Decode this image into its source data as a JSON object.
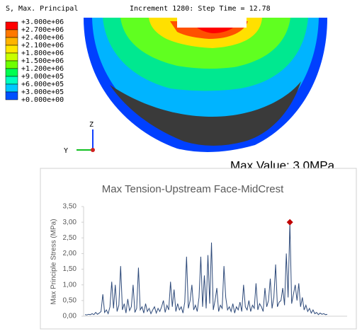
{
  "legend": {
    "title": "S, Max. Principal",
    "labels": [
      "+3.000e+06",
      "+2.700e+06",
      "+2.400e+06",
      "+2.100e+06",
      "+1.800e+06",
      "+1.500e+06",
      "+1.200e+06",
      "+9.000e+05",
      "+6.000e+05",
      "+3.000e+05",
      "+0.000e+00"
    ],
    "colors": [
      "#ff0000",
      "#ff7800",
      "#ffb400",
      "#ffe600",
      "#c8ff00",
      "#6eff00",
      "#00ff50",
      "#00ffc0",
      "#00c8ff",
      "#0050ff"
    ]
  },
  "increment": "Increment    1280: Step Time =    12.78",
  "triad": {
    "z": "Z",
    "y": "Y"
  },
  "max_value": "Max Value: 3.0MPa",
  "chart_data": {
    "type": "line",
    "title": "Max Tension-Upstream Face-MidCrest",
    "y_label": "Max Principle Stress (MPa)",
    "ylim": [
      0,
      3.5
    ],
    "yticks": [
      {
        "value": 0,
        "label": "0,00"
      },
      {
        "value": 0.5,
        "label": "0,50"
      },
      {
        "value": 1,
        "label": "1,00"
      },
      {
        "value": 1.5,
        "label": "1,50"
      },
      {
        "value": 2,
        "label": "2,00"
      },
      {
        "value": 2.5,
        "label": "2,50"
      },
      {
        "value": 3,
        "label": "3,00"
      },
      {
        "value": 3.5,
        "label": "3,50"
      }
    ],
    "grid": false,
    "color": "#2e4a7a",
    "max_marker_color": "#c00000",
    "values": [
      0.05,
      0.04,
      0.06,
      0.05,
      0.08,
      0.05,
      0.12,
      0.06,
      0.1,
      0.15,
      0.7,
      0.12,
      0.2,
      0.08,
      0.3,
      1.1,
      0.25,
      1.0,
      0.15,
      0.35,
      1.6,
      0.2,
      0.4,
      0.1,
      0.55,
      0.18,
      0.3,
      1.0,
      0.12,
      0.25,
      1.55,
      0.2,
      0.3,
      0.1,
      0.4,
      0.15,
      0.25,
      0.08,
      0.2,
      0.3,
      0.1,
      0.25,
      0.15,
      0.3,
      0.5,
      0.12,
      0.35,
      0.2,
      1.1,
      0.3,
      0.85,
      0.15,
      0.4,
      0.2,
      0.3,
      0.1,
      0.45,
      1.9,
      0.25,
      0.5,
      1.0,
      0.2,
      0.35,
      0.15,
      0.6,
      1.9,
      0.3,
      1.3,
      0.25,
      1.95,
      0.4,
      2.35,
      0.2,
      0.5,
      0.9,
      0.15,
      0.35,
      0.25,
      1.6,
      0.6,
      0.2,
      0.3,
      0.15,
      0.4,
      0.1,
      0.3,
      0.2,
      0.45,
      0.15,
      1.0,
      0.3,
      0.2,
      0.5,
      0.15,
      0.35,
      0.25,
      1.05,
      0.2,
      0.4,
      0.3,
      0.15,
      0.9,
      0.3,
      0.5,
      1.2,
      0.25,
      0.6,
      1.65,
      0.3,
      0.45,
      0.5,
      0.9,
      0.35,
      2.0,
      0.6,
      3.0,
      0.4,
      0.7,
      1.0,
      0.5,
      1.05,
      0.3,
      0.6,
      0.2,
      0.35,
      0.15,
      0.25,
      0.1,
      0.2,
      0.08,
      0.12,
      0.05,
      0.1,
      0.06,
      0.08,
      0.05,
      0.06
    ]
  }
}
